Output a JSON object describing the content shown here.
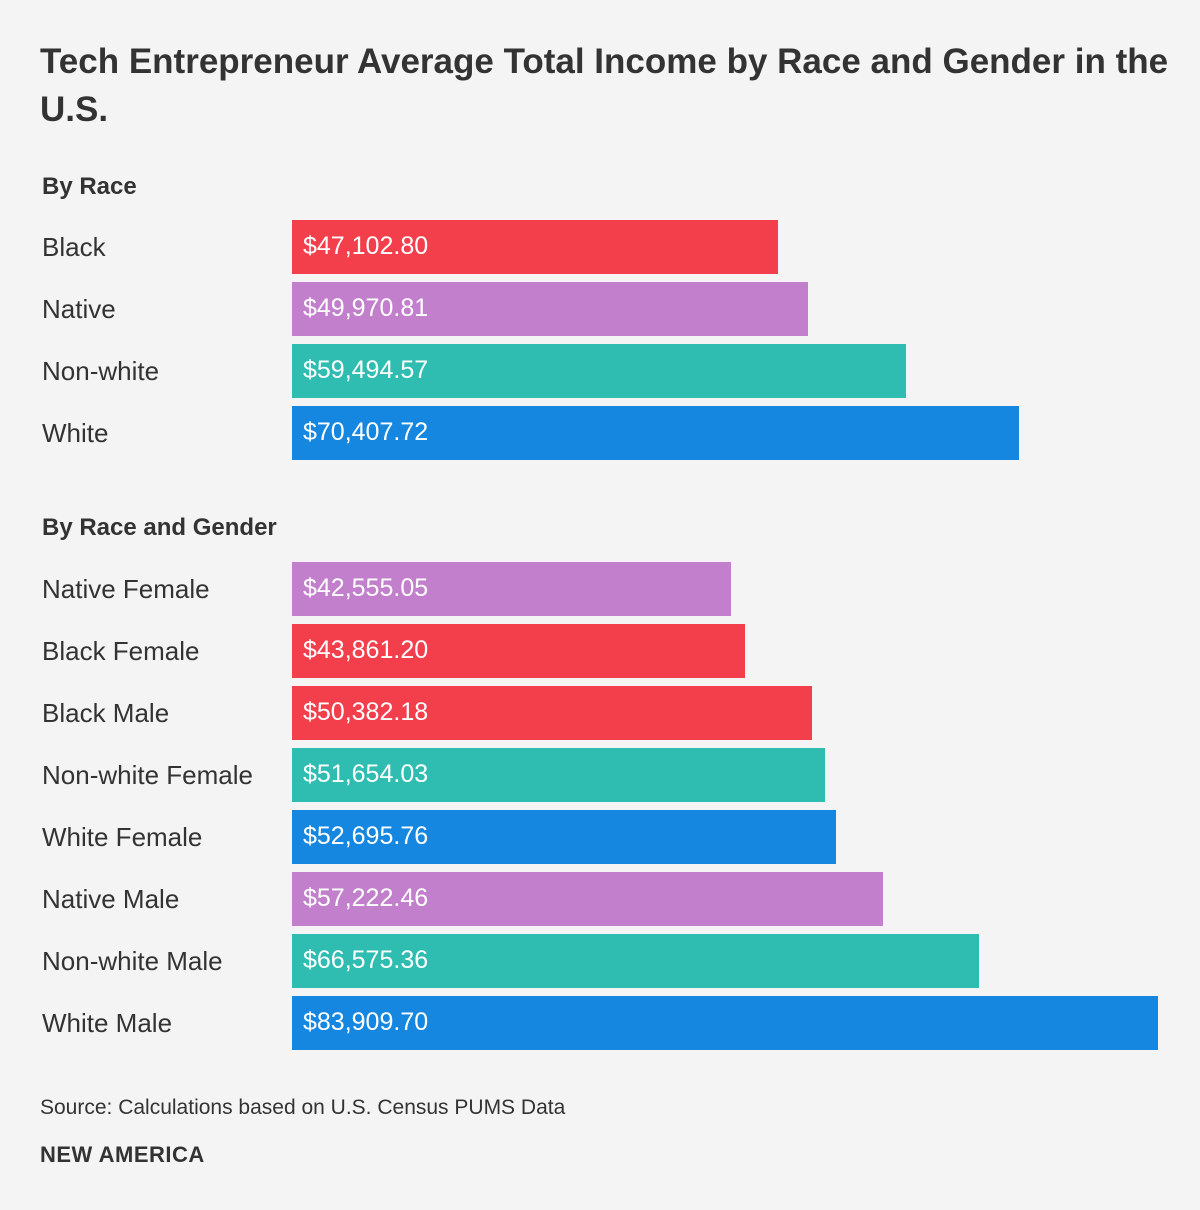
{
  "chart_data": {
    "type": "bar",
    "orientation": "horizontal",
    "title": "Tech Entrepreneur Average Total Income by Race and Gender in the U.S.",
    "source": "Source: Calculations based on U.S. Census PUMS Data",
    "brand": "NEW AMERICA",
    "colors": {
      "black": "#f33f4b",
      "native": "#c17fcc",
      "nonwhite": "#2fbdb1",
      "white": "#1587e0"
    },
    "panels": [
      {
        "heading": "By Race",
        "categories": [
          "Black",
          "Native",
          "Non-white",
          "White"
        ],
        "values": [
          47102.8,
          49970.81,
          59494.57,
          70407.72
        ],
        "value_labels": [
          "$47,102.80",
          "$49,970.81",
          "$59,494.57",
          "$70,407.72"
        ],
        "groups": [
          "black",
          "native",
          "nonwhite",
          "white"
        ]
      },
      {
        "heading": "By Race and Gender",
        "categories": [
          "Native Female",
          "Black Female",
          "Black Male",
          "Non-white Female",
          "White Female",
          "Native Male",
          "Non-white Male",
          "White Male"
        ],
        "values": [
          42555.05,
          43861.2,
          50382.18,
          51654.03,
          52695.76,
          57222.46,
          66575.36,
          83909.7
        ],
        "value_labels": [
          "$42,555.05",
          "$43,861.20",
          "$50,382.18",
          "$51,654.03",
          "$52,695.76",
          "$57,222.46",
          "$66,575.36",
          "$83,909.70"
        ],
        "groups": [
          "native",
          "black",
          "black",
          "nonwhite",
          "white",
          "native",
          "nonwhite",
          "white"
        ]
      }
    ],
    "xlim": [
      0,
      83909.7
    ]
  }
}
